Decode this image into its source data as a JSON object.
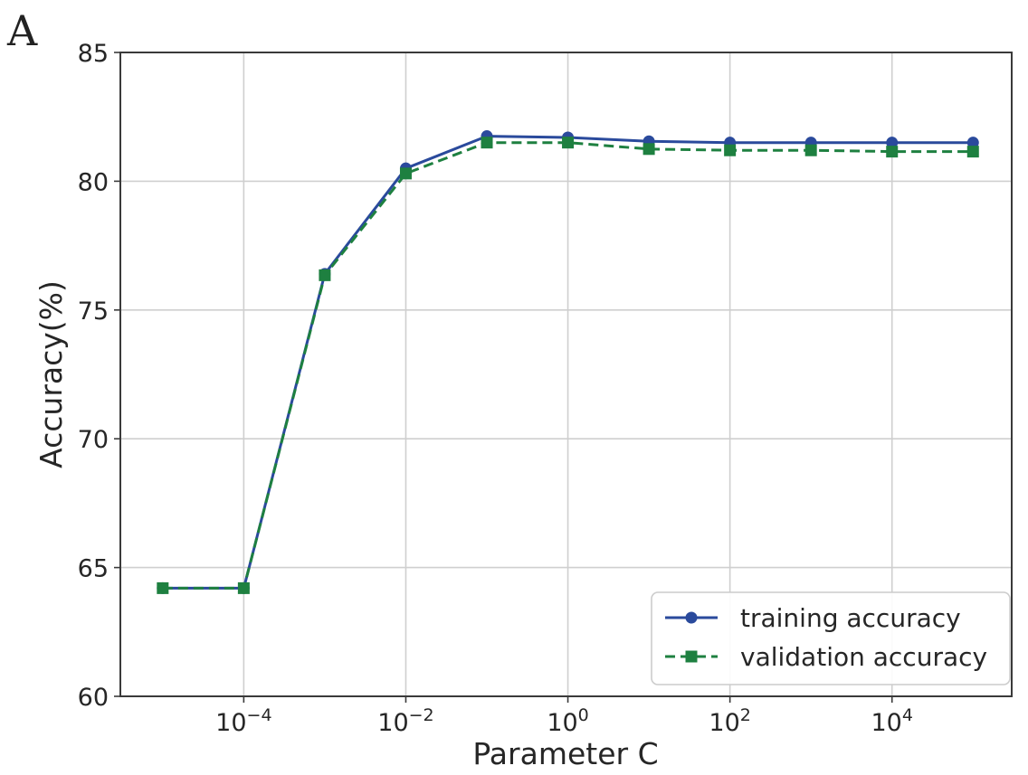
{
  "panel_label": "A",
  "colors": {
    "training": "#2a4a9c",
    "validation": "#1e8040",
    "grid": "#cfcfcf",
    "frame": "#3a3a3a"
  },
  "chart_data": {
    "type": "line",
    "title": "",
    "xlabel": "Parameter C",
    "ylabel": "Accuracy(%)",
    "xscale": "log",
    "xlim": [
      3e-06,
      300000.0
    ],
    "ylim": [
      60,
      85
    ],
    "grid": true,
    "legend_position": "lower right",
    "x": [
      1e-05,
      0.0001,
      0.001,
      0.01,
      0.1,
      1.0,
      10.0,
      100.0,
      1000.0,
      10000.0,
      100000.0
    ],
    "series": [
      {
        "name": "training accuracy",
        "color": "#2a4a9c",
        "linestyle": "solid",
        "marker": "circle",
        "values": [
          64.2,
          64.2,
          76.4,
          80.5,
          81.75,
          81.7,
          81.55,
          81.5,
          81.5,
          81.5,
          81.5
        ]
      },
      {
        "name": "validation accuracy",
        "color": "#1e8040",
        "linestyle": "dashed",
        "marker": "square",
        "values": [
          64.2,
          64.2,
          76.35,
          80.3,
          81.5,
          81.5,
          81.25,
          81.2,
          81.2,
          81.15,
          81.15
        ]
      }
    ],
    "y_ticks": [
      {
        "value": 60,
        "label": "60"
      },
      {
        "value": 65,
        "label": "65"
      },
      {
        "value": 70,
        "label": "70"
      },
      {
        "value": 75,
        "label": "75"
      },
      {
        "value": 80,
        "label": "80"
      },
      {
        "value": 85,
        "label": "85"
      }
    ],
    "x_ticks": [
      {
        "value": 0.0001,
        "base": "10",
        "exp": "−4"
      },
      {
        "value": 0.01,
        "base": "10",
        "exp": "−2"
      },
      {
        "value": 1.0,
        "base": "10",
        "exp": "0"
      },
      {
        "value": 100.0,
        "base": "10",
        "exp": "2"
      },
      {
        "value": 10000.0,
        "base": "10",
        "exp": "4"
      }
    ]
  }
}
